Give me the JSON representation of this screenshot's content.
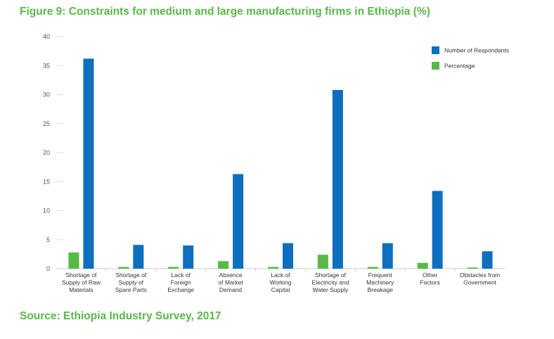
{
  "title": "Figure 9: Constraints for medium and large manufacturing firms in Ethiopia (%)",
  "source": "Source: Ethiopia Industry Survey, 2017",
  "colors": {
    "percentage": "#58b947",
    "respondents": "#0f6fbf",
    "accent": "#58b947"
  },
  "chart_data": {
    "type": "bar",
    "title": "Figure 9: Constraints for medium and large manufacturing firms in Ethiopia (%)",
    "xlabel": "",
    "ylabel": "",
    "ylim": [
      0,
      40
    ],
    "yticks": [
      "0",
      "5",
      "10",
      "15",
      "20",
      "25",
      "30",
      "35",
      "40"
    ],
    "legend_position": "top-right",
    "categories": [
      "Shortage of Supply of Raw Materials",
      "Shortage of Supply of Spare Parts",
      "Lack of Foreign Exchange",
      "Absence of Market Demand",
      "Lack of Working Capital",
      "Shortage of Electricity and Water Supply",
      "Frequent Machinery Breakage",
      "Other Factors",
      "Obstacles from Government"
    ],
    "category_lines": [
      [
        "Shortage of",
        "Supply of Raw",
        "Materials"
      ],
      [
        "Shortage of",
        "Supply of",
        "Spare Parts"
      ],
      [
        "Lack of",
        "Foreign",
        "Exchange"
      ],
      [
        "Absence",
        "of Market",
        "Demand"
      ],
      [
        "Lack of",
        "Working",
        "Capital"
      ],
      [
        "Shortage of",
        "Electricity and",
        "Water Supply"
      ],
      [
        "Frequent",
        "Machinery",
        "Breakage"
      ],
      [
        "Other",
        "Factors"
      ],
      [
        "Obstacles from",
        "Government"
      ]
    ],
    "series": [
      {
        "name": "Percentage",
        "values": [
          2.8,
          0.3,
          0.3,
          1.3,
          0.3,
          2.4,
          0.3,
          1.0,
          0.2
        ]
      },
      {
        "name": "Number of Respondents",
        "values": [
          36.2,
          4.1,
          4.0,
          16.3,
          4.4,
          30.8,
          4.4,
          13.4,
          3.0
        ]
      }
    ]
  }
}
